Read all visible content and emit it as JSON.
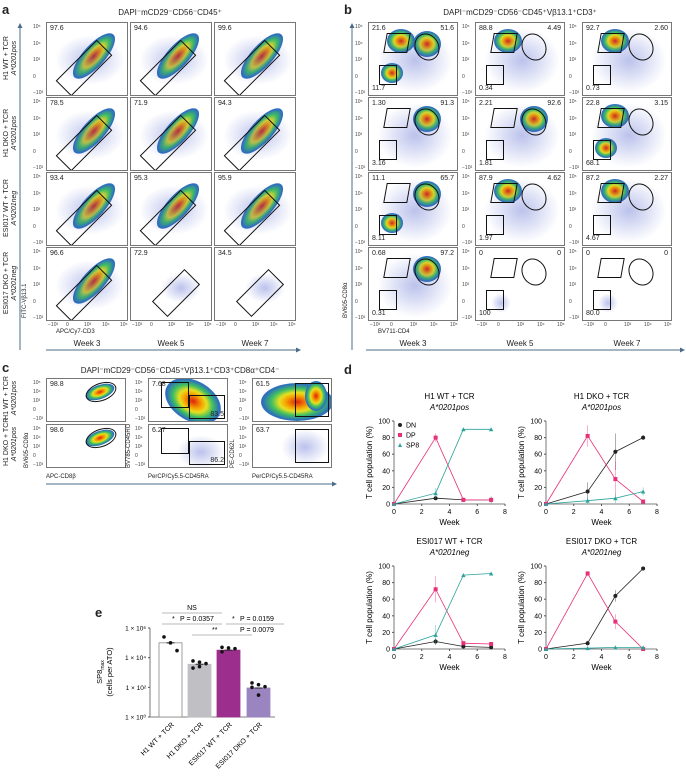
{
  "panel_labels": {
    "a": "a",
    "b": "b",
    "c": "c",
    "d": "d",
    "e": "e"
  },
  "flow_ticks": {
    "y": [
      "10⁵",
      "10⁴",
      "10³",
      "0",
      "−10³"
    ],
    "x": [
      "−10³",
      "0",
      "10³",
      "10⁴",
      "10⁵"
    ]
  },
  "panel_a": {
    "title": "DAPI⁻mCD29⁻CD56⁻CD45⁺",
    "weeks": [
      "Week 3",
      "Week 5",
      "Week 7"
    ],
    "rows": [
      {
        "label": "H1 WT + TCR",
        "hla": "A*0201pos",
        "values": [
          "97.6",
          "94.6",
          "99.6"
        ]
      },
      {
        "label": "H1 DKO + TCR",
        "hla": "A*0201pos",
        "values": [
          "78.5",
          "71.9",
          "94.3"
        ]
      },
      {
        "label": "ESI017 WT + TCR",
        "hla": "A*0201neg",
        "values": [
          "93.4",
          "95.3",
          "95.9"
        ]
      },
      {
        "label": "ESI017 DKO + TCR",
        "hla": "A*0201neg",
        "values": [
          "96.6",
          "72.9",
          "34.5"
        ]
      }
    ],
    "y_axis": "FITC-Vβ13.1",
    "x_axis": "APC/Cy7-CD3"
  },
  "panel_b": {
    "title": "DAPI⁻mCD29⁻CD56⁻CD45⁺Vβ13.1⁺CD3⁺",
    "weeks": [
      "Week 3",
      "Week 5",
      "Week 7"
    ],
    "rows": [
      [
        [
          "21.6",
          "51.6",
          "11.7"
        ],
        [
          "88.8",
          "4.49",
          "0.34"
        ],
        [
          "92.7",
          "2.60",
          "0.73"
        ]
      ],
      [
        [
          "1.30",
          "91.3",
          "3.16"
        ],
        [
          "2.21",
          "92.6",
          "1.81"
        ],
        [
          "22.8",
          "3.15",
          "68.1"
        ]
      ],
      [
        [
          "11.1",
          "65.7",
          "8.11"
        ],
        [
          "87.9",
          "4.62",
          "1.97"
        ],
        [
          "87.2",
          "2.27",
          "4.67"
        ]
      ],
      [
        [
          "0.68",
          "97.2",
          "0.31"
        ],
        [
          "0",
          "0",
          "100"
        ],
        [
          "0",
          "0",
          "80.0"
        ]
      ]
    ],
    "y_axis": "BV605-CD8α",
    "x_axis": "BV711-CD4"
  },
  "panel_c": {
    "title": "DAPI⁻mCD29⁻CD56⁻CD45⁺Vβ13.1⁺CD3⁺CD8α⁺CD4⁻",
    "rows": [
      {
        "label": "H1 WT + TCR",
        "hla": "A*0201pos",
        "values": [
          [
            "98.8"
          ],
          [
            "7.68",
            "83.5"
          ],
          [
            "61.5"
          ]
        ]
      },
      {
        "label": "H1 DKO + TCR",
        "hla": "A*0201pos",
        "values": [
          [
            "98.6"
          ],
          [
            "6.27",
            "86.2"
          ],
          [
            "63.7"
          ]
        ]
      }
    ],
    "axes": [
      {
        "y": "BV605-CD8α",
        "x": "APC-CD8β"
      },
      {
        "y": "BV785-CD45RO",
        "x": "PerCP/Cy5.5-CD45RA"
      },
      {
        "y": "PE-CD62L",
        "x": "PerCP/Cy5.5-CD45RA"
      }
    ]
  },
  "colors": {
    "DN": "#222222",
    "DP": "#e8307a",
    "SP8": "#2aa39a",
    "gate": "#111111",
    "axis_arrow": "#4a6b8a"
  },
  "chart_data": [
    {
      "type": "line",
      "title": "H1 WT + TCR",
      "subtitle": "A*0201pos",
      "xlabel": "Week",
      "ylabel": "T cell population (%)",
      "xlim": [
        0,
        8
      ],
      "ylim": [
        0,
        100
      ],
      "xticks": [
        0,
        2,
        4,
        6,
        8
      ],
      "yticks": [
        0,
        20,
        40,
        60,
        80,
        100
      ],
      "legend": [
        "DN",
        "DP",
        "SP8"
      ],
      "legend_position": "top-left",
      "x": [
        0,
        3,
        5,
        7
      ],
      "series": [
        {
          "name": "DN",
          "values": [
            0,
            7,
            5,
            5
          ],
          "err": [
            0,
            2,
            1,
            4
          ]
        },
        {
          "name": "DP",
          "values": [
            0,
            80,
            5,
            5
          ],
          "err": [
            0,
            5,
            1,
            1
          ]
        },
        {
          "name": "SP8",
          "values": [
            0,
            13,
            90,
            90
          ],
          "err": [
            0,
            6,
            1,
            2
          ]
        }
      ]
    },
    {
      "type": "line",
      "title": "H1 DKO + TCR",
      "subtitle": "A*0201pos",
      "xlabel": "Week",
      "ylabel": "T cell population (%)",
      "xlim": [
        0,
        8
      ],
      "ylim": [
        0,
        100
      ],
      "xticks": [
        0,
        2,
        4,
        6,
        8
      ],
      "yticks": [
        0,
        20,
        40,
        60,
        80,
        100
      ],
      "x": [
        0,
        3,
        5,
        7
      ],
      "series": [
        {
          "name": "DN",
          "values": [
            0,
            15,
            63,
            80
          ],
          "err": [
            0,
            11,
            22,
            3
          ]
        },
        {
          "name": "DP",
          "values": [
            0,
            82,
            30,
            3
          ],
          "err": [
            0,
            13,
            21,
            1
          ]
        },
        {
          "name": "SP8",
          "values": [
            0,
            4,
            7,
            15
          ],
          "err": [
            0,
            4,
            6,
            5
          ]
        }
      ]
    },
    {
      "type": "line",
      "title": "ESI017 WT + TCR",
      "subtitle": "A*0201neg",
      "xlabel": "Week",
      "ylabel": "T cell population (%)",
      "xlim": [
        0,
        8
      ],
      "ylim": [
        0,
        100
      ],
      "xticks": [
        0,
        2,
        4,
        6,
        8
      ],
      "yticks": [
        0,
        20,
        40,
        60,
        80,
        100
      ],
      "x": [
        0,
        3,
        5,
        7
      ],
      "series": [
        {
          "name": "DN",
          "values": [
            0,
            9,
            3,
            2
          ],
          "err": [
            0,
            4,
            1,
            1
          ]
        },
        {
          "name": "DP",
          "values": [
            0,
            72,
            7,
            6
          ],
          "err": [
            0,
            16,
            1,
            2
          ]
        },
        {
          "name": "SP8",
          "values": [
            0,
            17,
            89,
            91
          ],
          "err": [
            0,
            12,
            1,
            1
          ]
        }
      ]
    },
    {
      "type": "line",
      "title": "ESI017 DKO + TCR",
      "subtitle": "A*0201neg",
      "xlabel": "Week",
      "ylabel": "T cell population (%)",
      "xlim": [
        0,
        8
      ],
      "ylim": [
        0,
        100
      ],
      "xticks": [
        0,
        2,
        4,
        6,
        8
      ],
      "yticks": [
        0,
        20,
        40,
        60,
        80,
        100
      ],
      "x": [
        0,
        3,
        5,
        7
      ],
      "series": [
        {
          "name": "DN",
          "values": [
            0,
            7,
            64,
            97
          ],
          "err": [
            0,
            3,
            7,
            1
          ]
        },
        {
          "name": "DP",
          "values": [
            0,
            91,
            33,
            0
          ],
          "err": [
            0,
            3,
            9,
            0
          ]
        },
        {
          "name": "SP8",
          "values": [
            0,
            1,
            2,
            2
          ],
          "err": [
            0,
            1,
            1,
            1
          ]
        }
      ]
    },
    {
      "type": "bar",
      "ylabel": "SP8max (cells per ATO)",
      "ylabel_main": "SP8",
      "ylabel_sub": "max",
      "ylabel2": "(cells per ATO)",
      "yscale": "log",
      "ylim": [
        1,
        1000000
      ],
      "yticks": [
        {
          "v": 1,
          "label": "1 × 10⁰"
        },
        {
          "v": 100,
          "label": "1 × 10²"
        },
        {
          "v": 10000,
          "label": "1 × 10⁴"
        },
        {
          "v": 1000000,
          "label": "1 × 10⁶"
        }
      ],
      "categories": [
        "H1 WT + TCR",
        "H1 DKO + TCR",
        "ESI017 WT + TCR",
        "ESI017 DKO + TCR"
      ],
      "values": [
        100000,
        3600,
        32000,
        90
      ],
      "points": [
        [
          250000,
          100000,
          30000
        ],
        [
          6000,
          5000,
          4000,
          2000,
          2500
        ],
        [
          50000,
          45000,
          40000,
          25000
        ],
        [
          200,
          150,
          110,
          100,
          30
        ]
      ],
      "bar_colors": [
        "#ffffff",
        "#c0c0c4",
        "#9c2f8e",
        "#9b85c0"
      ],
      "annotations": [
        {
          "text": "NS"
        },
        {
          "text": "*",
          "p": "P = 0.0357"
        },
        {
          "text": "*",
          "p": "P = 0.0159"
        },
        {
          "text": "**",
          "p": "P = 0.0079"
        }
      ]
    }
  ]
}
